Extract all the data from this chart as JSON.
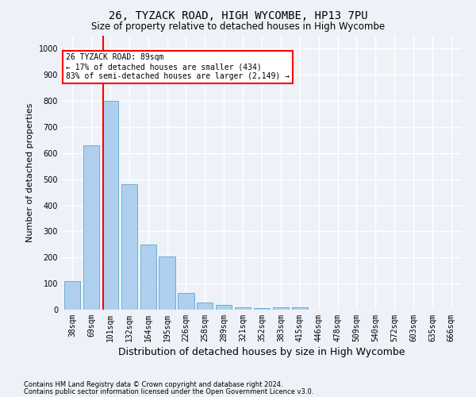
{
  "title1": "26, TYZACK ROAD, HIGH WYCOMBE, HP13 7PU",
  "title2": "Size of property relative to detached houses in High Wycombe",
  "xlabel": "Distribution of detached houses by size in High Wycombe",
  "ylabel": "Number of detached properties",
  "footnote1": "Contains HM Land Registry data © Crown copyright and database right 2024.",
  "footnote2": "Contains public sector information licensed under the Open Government Licence v3.0.",
  "bar_labels": [
    "38sqm",
    "69sqm",
    "101sqm",
    "132sqm",
    "164sqm",
    "195sqm",
    "226sqm",
    "258sqm",
    "289sqm",
    "321sqm",
    "352sqm",
    "383sqm",
    "415sqm",
    "446sqm",
    "478sqm",
    "509sqm",
    "540sqm",
    "572sqm",
    "603sqm",
    "635sqm",
    "666sqm"
  ],
  "bar_values": [
    110,
    630,
    800,
    480,
    250,
    205,
    65,
    28,
    18,
    10,
    5,
    10,
    8,
    0,
    0,
    0,
    0,
    0,
    0,
    0,
    0
  ],
  "bar_color": "#aed0ee",
  "bar_edge_color": "#6aaed6",
  "annotation_text": "26 TYZACK ROAD: 89sqm\n← 17% of detached houses are smaller (434)\n83% of semi-detached houses are larger (2,149) →",
  "annotation_box_facecolor": "white",
  "annotation_box_edgecolor": "red",
  "vline_color": "red",
  "vline_x": 1.625,
  "ylim_max": 1050,
  "yticks": [
    0,
    100,
    200,
    300,
    400,
    500,
    600,
    700,
    800,
    900,
    1000
  ],
  "background_color": "#eef2f8",
  "grid_color": "white",
  "title1_fontsize": 10,
  "title2_fontsize": 8.5,
  "ylabel_fontsize": 8,
  "xlabel_fontsize": 9,
  "tick_fontsize": 7,
  "footnote_fontsize": 6
}
